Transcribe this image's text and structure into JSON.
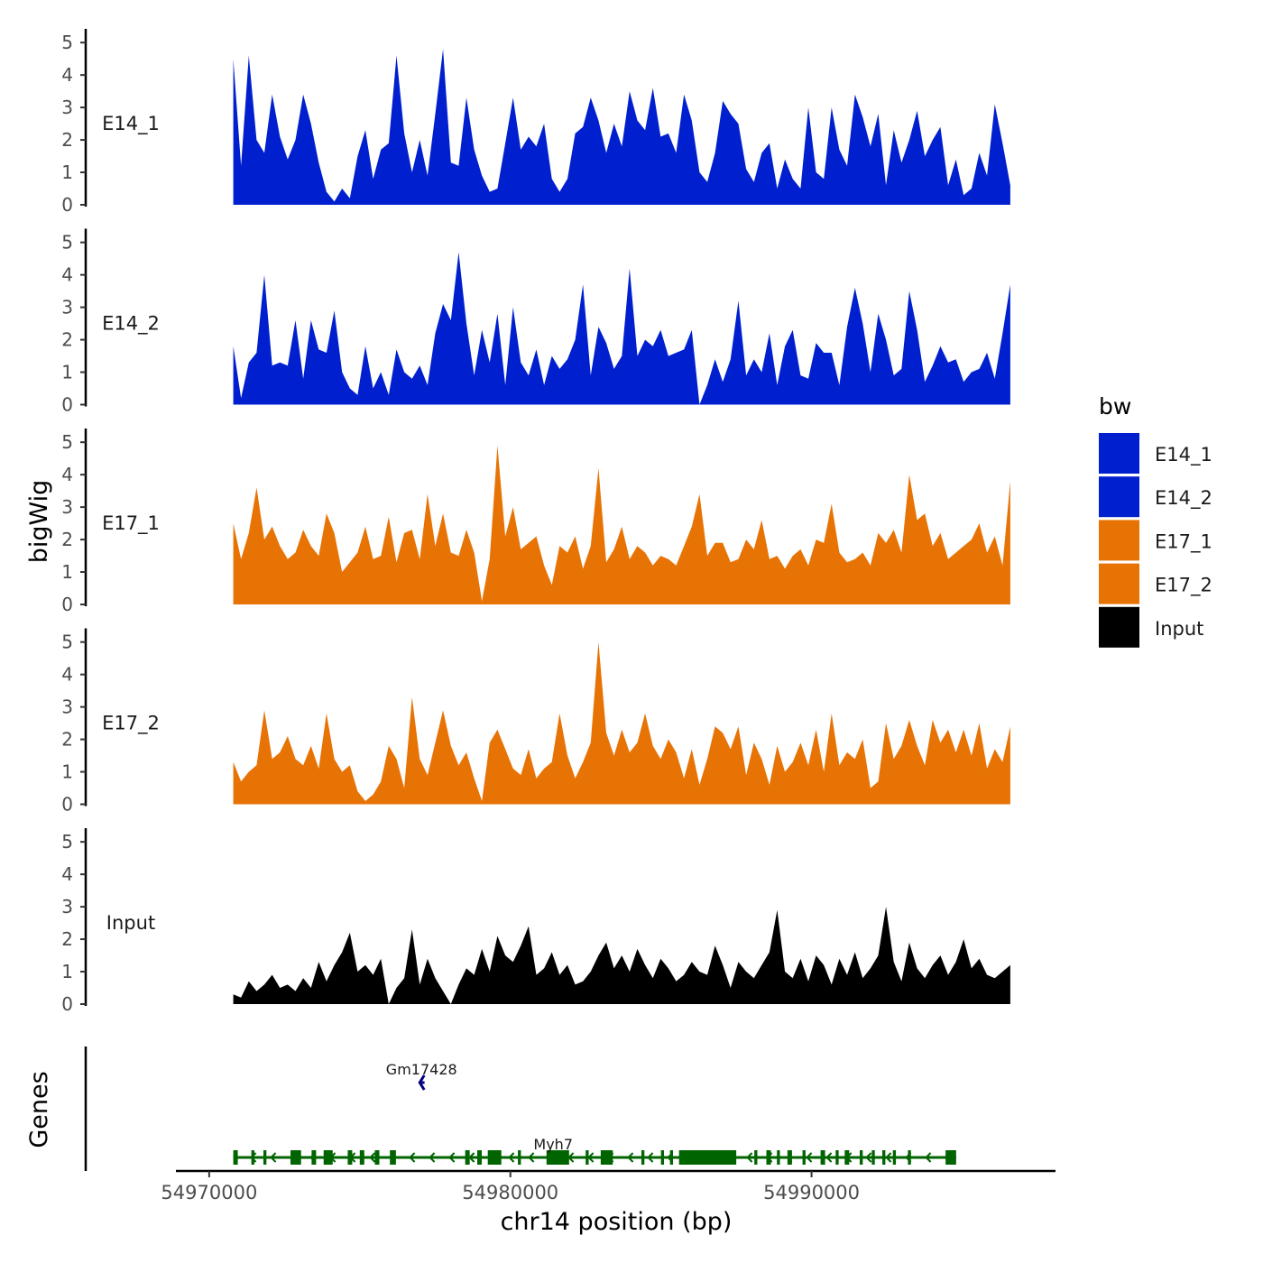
{
  "chart_data": {
    "type": "area",
    "title": "",
    "ylabel": "bigWig",
    "xlabel": "chr14 position (bp)",
    "genes_label": "Genes",
    "xlim": [
      54965900,
      54998100
    ],
    "ylim": [
      0,
      5.2
    ],
    "x_ticks": [
      54970000,
      54980000,
      54990000
    ],
    "x_tick_labels": [
      "54970000",
      "54980000",
      "54990000"
    ],
    "y_ticks": [
      0,
      1,
      2,
      3,
      4,
      5
    ],
    "y_tick_labels": [
      "0",
      "1",
      "2",
      "3",
      "4",
      "5"
    ],
    "track_x_range": [
      54970800,
      54996600
    ],
    "legend": {
      "title": "bw",
      "entries": [
        {
          "label": "E14_1",
          "color": "#0020D0"
        },
        {
          "label": "E14_2",
          "color": "#0020D0"
        },
        {
          "label": "E17_1",
          "color": "#E87305"
        },
        {
          "label": "E17_2",
          "color": "#E87305"
        },
        {
          "label": "Input",
          "color": "#000000"
        }
      ]
    },
    "tracks": [
      {
        "name": "E14_1",
        "color": "#0020D0",
        "values": [
          4.5,
          1.2,
          4.6,
          2.0,
          1.6,
          3.4,
          2.1,
          1.4,
          2.0,
          3.4,
          2.5,
          1.3,
          0.4,
          0.1,
          0.5,
          0.2,
          1.5,
          2.3,
          0.8,
          1.7,
          1.9,
          4.6,
          2.2,
          1.0,
          2.0,
          0.9,
          2.8,
          4.8,
          1.3,
          1.2,
          3.3,
          1.7,
          0.9,
          0.4,
          0.5,
          1.9,
          3.3,
          1.7,
          2.1,
          1.8,
          2.5,
          0.8,
          0.4,
          0.8,
          2.2,
          2.4,
          3.3,
          2.6,
          1.6,
          2.5,
          1.8,
          3.5,
          2.6,
          2.3,
          3.6,
          2.1,
          2.2,
          1.6,
          3.4,
          2.6,
          1.0,
          0.7,
          1.6,
          3.2,
          2.8,
          2.5,
          1.1,
          0.7,
          1.6,
          1.9,
          0.5,
          1.4,
          0.8,
          0.5,
          3.0,
          1.0,
          0.8,
          3.0,
          1.7,
          1.2,
          3.4,
          2.7,
          1.8,
          2.8,
          0.6,
          2.3,
          1.3,
          2.0,
          2.9,
          1.5,
          2.0,
          2.4,
          0.6,
          1.4,
          0.3,
          0.5,
          1.6,
          0.9,
          3.1,
          1.9,
          0.6
        ]
      },
      {
        "name": "E14_2",
        "color": "#0020D0",
        "values": [
          1.8,
          0.2,
          1.3,
          1.6,
          4.0,
          1.2,
          1.3,
          1.2,
          2.6,
          0.8,
          2.6,
          1.7,
          1.6,
          2.9,
          1.0,
          0.5,
          0.3,
          1.8,
          0.5,
          1.0,
          0.3,
          1.7,
          1.0,
          0.8,
          1.2,
          0.6,
          2.2,
          3.1,
          2.6,
          4.7,
          2.5,
          0.9,
          2.3,
          1.3,
          2.8,
          0.6,
          3.0,
          1.3,
          0.9,
          1.7,
          0.6,
          1.5,
          1.1,
          1.4,
          2.0,
          3.7,
          0.9,
          2.4,
          1.9,
          1.1,
          1.5,
          4.2,
          1.5,
          2.0,
          1.8,
          2.3,
          1.5,
          1.6,
          1.7,
          2.3,
          0.0,
          0.6,
          1.4,
          0.7,
          1.4,
          3.2,
          0.9,
          1.4,
          1.0,
          2.2,
          0.6,
          1.8,
          2.3,
          0.9,
          0.8,
          1.9,
          1.6,
          1.6,
          0.6,
          2.4,
          3.6,
          2.5,
          1.0,
          2.8,
          2.0,
          0.9,
          1.1,
          3.5,
          2.3,
          0.7,
          1.2,
          1.8,
          1.3,
          1.4,
          0.7,
          1.0,
          1.1,
          1.6,
          0.8,
          2.2,
          3.7
        ]
      },
      {
        "name": "E17_1",
        "color": "#E87305",
        "values": [
          2.5,
          1.4,
          2.2,
          3.6,
          2.0,
          2.4,
          1.8,
          1.4,
          1.6,
          2.3,
          1.8,
          1.5,
          2.8,
          2.2,
          1.0,
          1.3,
          1.6,
          2.4,
          1.4,
          1.5,
          2.7,
          1.3,
          2.2,
          2.3,
          1.4,
          3.4,
          1.8,
          2.8,
          1.6,
          1.5,
          2.3,
          1.6,
          0.1,
          1.4,
          4.9,
          2.1,
          3.0,
          1.7,
          1.9,
          2.1,
          1.2,
          0.6,
          1.8,
          1.6,
          2.1,
          1.1,
          1.8,
          4.2,
          1.3,
          1.7,
          2.4,
          1.4,
          1.8,
          1.6,
          1.2,
          1.5,
          1.4,
          1.2,
          1.8,
          2.4,
          3.4,
          1.5,
          1.9,
          1.9,
          1.3,
          1.4,
          2.0,
          1.7,
          2.6,
          1.4,
          1.5,
          1.1,
          1.5,
          1.7,
          1.2,
          2.0,
          1.9,
          3.1,
          1.6,
          1.3,
          1.4,
          1.6,
          1.2,
          2.2,
          1.9,
          2.3,
          1.6,
          4.0,
          2.6,
          2.8,
          1.8,
          2.2,
          1.4,
          1.6,
          1.8,
          2.0,
          2.5,
          1.6,
          2.1,
          1.2,
          3.8
        ]
      },
      {
        "name": "E17_2",
        "color": "#E87305",
        "values": [
          1.3,
          0.7,
          1.0,
          1.2,
          2.9,
          1.4,
          1.6,
          2.1,
          1.4,
          1.2,
          1.8,
          1.1,
          2.8,
          1.4,
          1.0,
          1.2,
          0.4,
          0.1,
          0.3,
          0.7,
          1.8,
          1.4,
          0.5,
          3.3,
          1.4,
          0.9,
          1.9,
          2.9,
          1.8,
          1.2,
          1.6,
          0.8,
          0.1,
          1.9,
          2.3,
          1.7,
          1.1,
          0.9,
          1.7,
          0.8,
          1.1,
          1.3,
          2.8,
          1.5,
          0.8,
          1.3,
          1.9,
          5.0,
          2.2,
          1.5,
          2.3,
          1.6,
          1.9,
          2.8,
          1.8,
          1.4,
          2.0,
          1.6,
          0.8,
          1.7,
          0.6,
          1.4,
          2.4,
          2.2,
          1.7,
          2.4,
          0.9,
          1.9,
          1.4,
          0.6,
          1.8,
          1.0,
          1.3,
          1.9,
          1.2,
          2.3,
          1.0,
          2.8,
          1.2,
          1.6,
          1.4,
          2.0,
          0.5,
          0.7,
          2.5,
          1.4,
          1.8,
          2.6,
          1.8,
          1.2,
          2.6,
          1.9,
          2.3,
          1.6,
          2.3,
          1.5,
          2.5,
          1.1,
          1.7,
          1.3,
          2.4
        ]
      },
      {
        "name": "Input",
        "color": "#000000",
        "values": [
          0.3,
          0.2,
          0.7,
          0.4,
          0.6,
          0.9,
          0.5,
          0.6,
          0.4,
          0.8,
          0.5,
          1.3,
          0.7,
          1.2,
          1.6,
          2.2,
          1.0,
          1.2,
          0.9,
          1.4,
          0.0,
          0.5,
          0.8,
          2.3,
          0.6,
          1.4,
          0.8,
          0.4,
          0.0,
          0.6,
          1.1,
          0.9,
          1.7,
          1.0,
          2.1,
          1.5,
          1.3,
          1.8,
          2.4,
          0.9,
          1.1,
          1.6,
          0.9,
          1.2,
          0.6,
          0.7,
          1.0,
          1.5,
          1.9,
          1.1,
          1.5,
          1.0,
          1.7,
          1.2,
          0.8,
          1.4,
          1.1,
          0.7,
          0.9,
          1.3,
          1.0,
          0.9,
          1.8,
          1.2,
          0.5,
          1.3,
          1.0,
          0.8,
          1.2,
          1.6,
          2.9,
          1.0,
          0.8,
          1.4,
          0.7,
          1.5,
          1.2,
          0.6,
          1.4,
          0.9,
          1.6,
          0.8,
          1.1,
          1.5,
          3.0,
          1.3,
          0.7,
          1.9,
          1.1,
          0.8,
          1.2,
          1.5,
          0.9,
          1.3,
          2.0,
          1.1,
          1.4,
          0.9,
          0.8,
          1.0,
          1.2
        ]
      }
    ],
    "genes": [
      {
        "name": "Gm17428",
        "start": 54977050,
        "end": 54977150,
        "color": "#000080",
        "row": 1
      },
      {
        "name": "Myh7",
        "start": 54970800,
        "end": 54994800,
        "color": "#006400",
        "row": 0,
        "exons": [
          [
            54970800,
            54970950
          ],
          [
            54971400,
            54971500
          ],
          [
            54971800,
            54971900
          ],
          [
            54972700,
            54973050
          ],
          [
            54973400,
            54973550
          ],
          [
            54973800,
            54974100
          ],
          [
            54974600,
            54974750
          ],
          [
            54975000,
            54975150
          ],
          [
            54975500,
            54975650
          ],
          [
            54976000,
            54976200
          ],
          [
            54978500,
            54978650
          ],
          [
            54978900,
            54979050
          ],
          [
            54979250,
            54979700
          ],
          [
            54980250,
            54980350
          ],
          [
            54981200,
            54981950
          ],
          [
            54982500,
            54982600
          ],
          [
            54983000,
            54983400
          ],
          [
            54984350,
            54984450
          ],
          [
            54985000,
            54985100
          ],
          [
            54985300,
            54985400
          ],
          [
            54985600,
            54987500
          ],
          [
            54988100,
            54988200
          ],
          [
            54988500,
            54988650
          ],
          [
            54988850,
            54988950
          ],
          [
            54989200,
            54989350
          ],
          [
            54989700,
            54989800
          ],
          [
            54990300,
            54990450
          ],
          [
            54990800,
            54990900
          ],
          [
            54991100,
            54991250
          ],
          [
            54991600,
            54991700
          ],
          [
            54992000,
            54992100
          ],
          [
            54992350,
            54992450
          ],
          [
            54992700,
            54992800
          ],
          [
            54993200,
            54993300
          ],
          [
            54994450,
            54994800
          ]
        ]
      }
    ]
  }
}
